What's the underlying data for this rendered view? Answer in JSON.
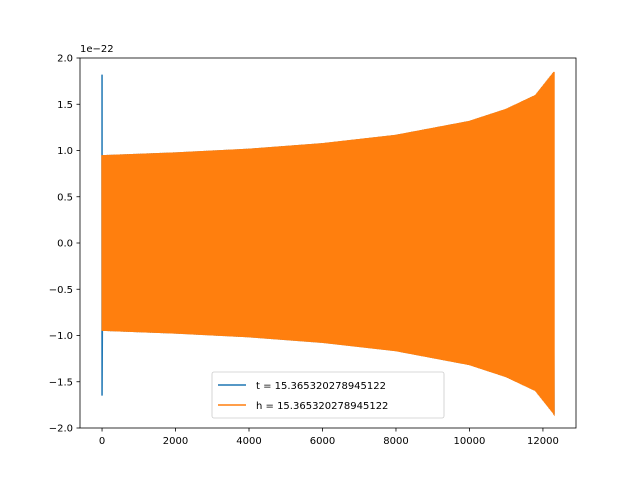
{
  "chart_data": {
    "type": "line",
    "title": "",
    "xlabel": "",
    "ylabel": "",
    "y_offset_label": "1e−22",
    "xlim": [
      -600,
      12900
    ],
    "ylim": [
      -2.0,
      2.0
    ],
    "xticks": [
      0,
      2000,
      4000,
      6000,
      8000,
      10000,
      12000
    ],
    "xtick_labels": [
      "0",
      "2000",
      "4000",
      "6000",
      "8000",
      "10000",
      "12000"
    ],
    "yticks": [
      2.0,
      1.5,
      1.0,
      0.5,
      0.0,
      -0.5,
      -1.0,
      -1.5,
      -2.0
    ],
    "ytick_labels": [
      "2.0",
      "1.5",
      "1.0",
      "0.5",
      "0.0",
      "−0.5",
      "−1.0",
      "−1.5",
      "−2.0"
    ],
    "grid": false,
    "legend_position": "lower center",
    "series": [
      {
        "name": "t = 15.365320278945122",
        "color": "#1f77b4",
        "description": "spike at start then chirp oscillation",
        "spike": {
          "x": 0,
          "ymax": 1.82,
          "ymin": -1.65
        },
        "envelope": {
          "x": [
            0,
            2000,
            4000,
            6000,
            8000,
            10000,
            11000,
            11800,
            12300
          ],
          "amp": [
            0.95,
            0.98,
            1.02,
            1.08,
            1.17,
            1.32,
            1.45,
            1.6,
            1.85
          ]
        }
      },
      {
        "name": "h = 15.365320278945122",
        "color": "#ff7f0e",
        "envelope": {
          "x": [
            0,
            2000,
            4000,
            6000,
            8000,
            10000,
            11000,
            11800,
            12300
          ],
          "amp": [
            0.95,
            0.98,
            1.02,
            1.08,
            1.17,
            1.32,
            1.45,
            1.6,
            1.85
          ]
        }
      }
    ]
  }
}
